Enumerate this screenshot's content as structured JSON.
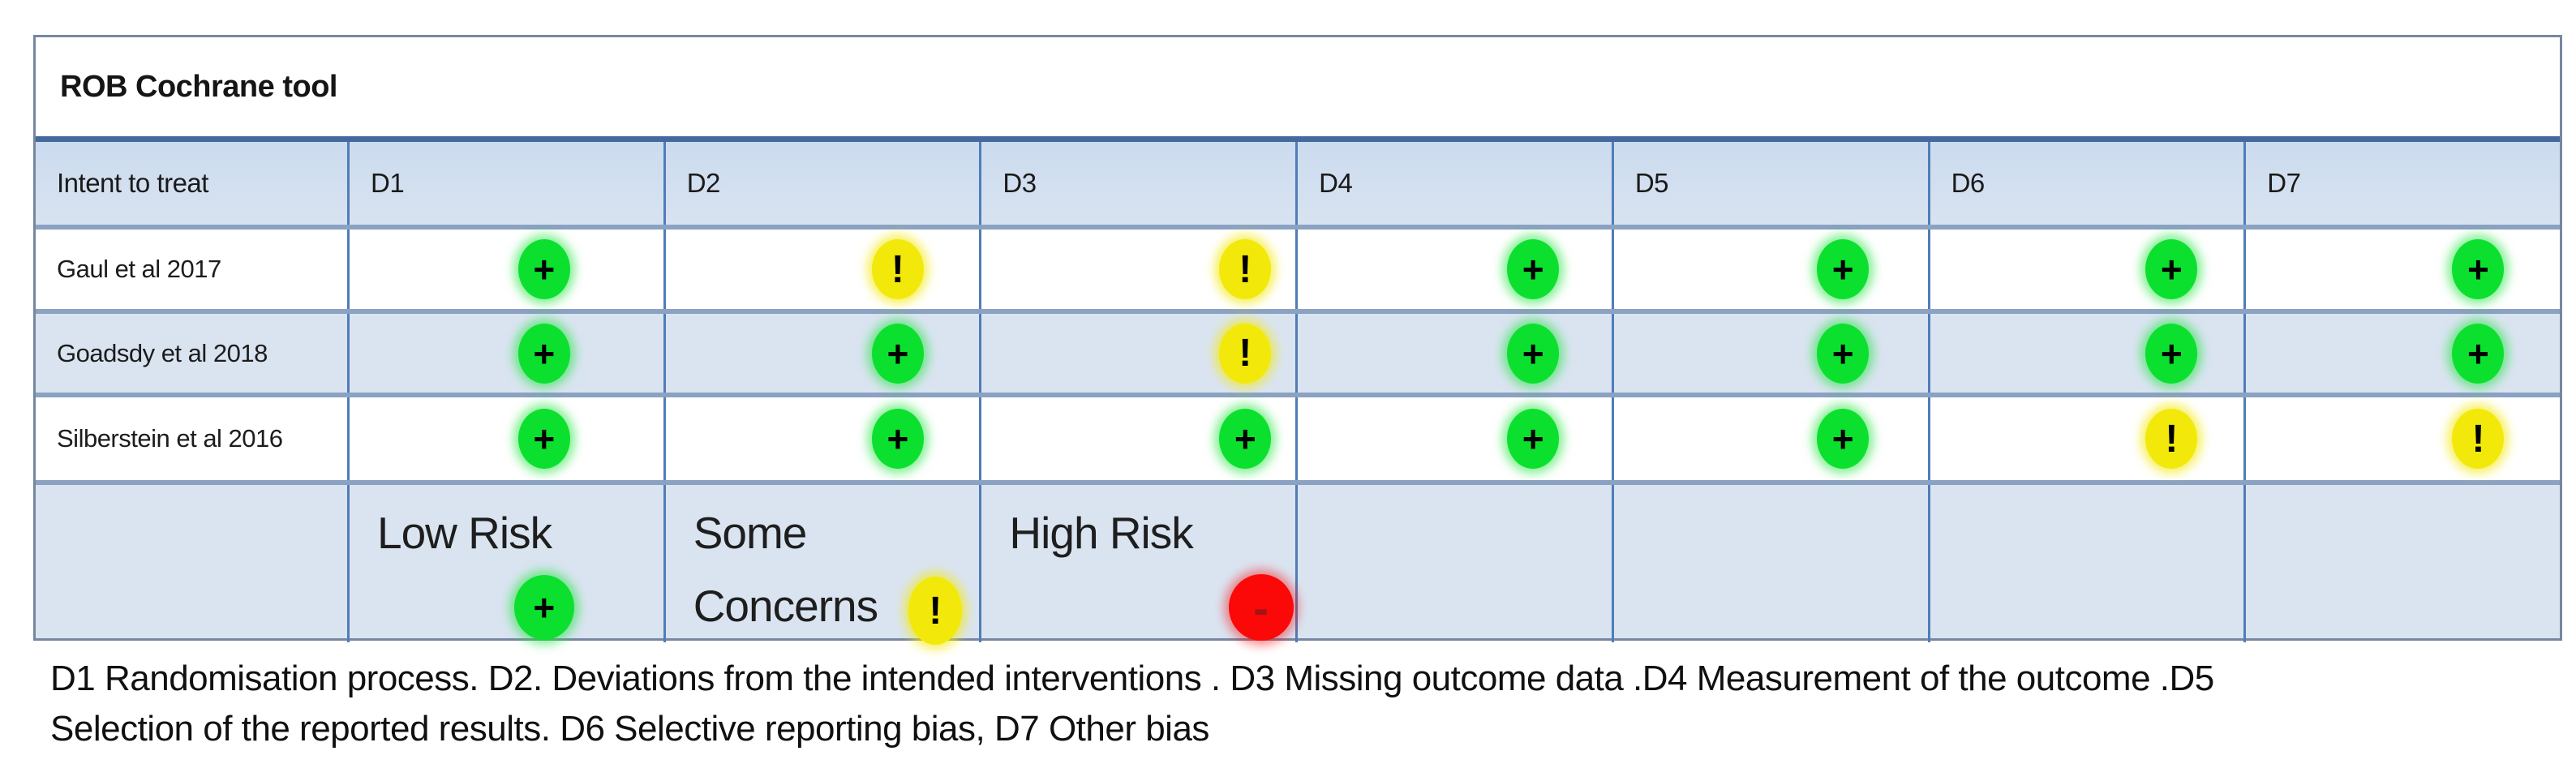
{
  "title": "ROB Cochrane tool",
  "table": {
    "corner_label": "Intent to treat",
    "domain_headers": [
      "D1",
      "D2",
      "D3",
      "D4",
      "D5",
      "D6",
      "D7"
    ],
    "rows": [
      {
        "study": "Gaul et al 2017",
        "ratings": [
          "low",
          "some",
          "some",
          "low",
          "low",
          "low",
          "low"
        ]
      },
      {
        "study": "Goadsdy et al 2018",
        "ratings": [
          "low",
          "low",
          "some",
          "low",
          "low",
          "low",
          "low"
        ]
      },
      {
        "study": "Silberstein  et al 2016",
        "ratings": [
          "low",
          "low",
          "low",
          "low",
          "low",
          "some",
          "some"
        ]
      }
    ]
  },
  "legend": [
    {
      "label": "Low Risk",
      "rating": "low"
    },
    {
      "label": "Some Concerns",
      "rating": "some"
    },
    {
      "label": "High Risk",
      "rating": "high"
    }
  ],
  "icons": {
    "low": "+",
    "some": "!",
    "high": "-"
  },
  "colors": {
    "low_risk": "#0ce02e",
    "some_concerns": "#f2e90b",
    "high_risk": "#fb0808",
    "header_fill": "#d5e1f0",
    "band_fill": "#dae4f1",
    "grid_line": "#4f7db8",
    "row_divider": "#8ba2c2",
    "title_divider": "#44699d"
  },
  "footnote": {
    "line1": "D1 Randomisation process. D2. Deviations from the intended interventions . D3 Missing outcome data  .D4 Measurement of the outcome .D5",
    "line2": "Selection of the reported results. D6 Selective reporting bias,  D7 Other bias"
  }
}
